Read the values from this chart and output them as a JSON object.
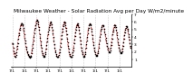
{
  "title": "Milwaukee Weather - Solar Radiation Avg per Day W/m2/minute",
  "line_color": "#dd0000",
  "marker_color": "#000000",
  "background_color": "#ffffff",
  "grid_color": "#999999",
  "ylim": [
    0,
    7
  ],
  "yticks": [
    1,
    2,
    3,
    4,
    5,
    6,
    7
  ],
  "title_fontsize": 4.2,
  "tick_fontsize": 3.2,
  "values": [
    3.2,
    3.0,
    2.5,
    2.1,
    1.8,
    1.5,
    1.3,
    1.4,
    1.6,
    2.0,
    2.4,
    2.8,
    3.2,
    3.7,
    4.2,
    4.5,
    4.9,
    5.2,
    5.5,
    5.7,
    5.8,
    5.8,
    5.7,
    5.5,
    5.2,
    4.8,
    4.3,
    3.9,
    3.5,
    3.1,
    2.7,
    2.4,
    2.1,
    1.9,
    1.7,
    1.6,
    1.5,
    1.4,
    1.3,
    1.2,
    1.3,
    1.5,
    1.8,
    2.2,
    2.6,
    3.0,
    3.5,
    4.0,
    4.5,
    4.9,
    5.2,
    5.5,
    5.8,
    6.1,
    6.3,
    6.2,
    6.0,
    5.7,
    5.3,
    4.9,
    4.4,
    3.9,
    3.4,
    2.9,
    2.5,
    2.1,
    1.8,
    1.6,
    1.5,
    1.4,
    1.4,
    1.5,
    1.7,
    2.0,
    2.4,
    2.9,
    3.4,
    3.9,
    4.3,
    4.7,
    5.0,
    5.3,
    5.6,
    5.8,
    6.0,
    5.9,
    5.7,
    5.3,
    4.9,
    4.5,
    4.0,
    3.5,
    3.0,
    2.6,
    2.2,
    1.9,
    1.7,
    1.5,
    1.4,
    1.3,
    1.3,
    1.4,
    1.6,
    1.9,
    2.3,
    2.7,
    3.2,
    3.7,
    4.2,
    4.7,
    5.1,
    5.4,
    5.7,
    5.9,
    6.0,
    5.9,
    5.6,
    5.2,
    4.8,
    4.3,
    3.8,
    3.3,
    2.8,
    2.4,
    2.0,
    1.7,
    1.5,
    1.4,
    1.3,
    1.3,
    1.4,
    1.6,
    1.9,
    2.2,
    2.6,
    3.1,
    3.6,
    4.1,
    4.6,
    5.0,
    5.3,
    5.6,
    5.7,
    5.8,
    5.6,
    5.3,
    4.9,
    4.5,
    4.0,
    3.5,
    3.0,
    2.6,
    2.2,
    1.9,
    1.7,
    1.5,
    1.4,
    1.4,
    1.5,
    1.7,
    2.0,
    2.5,
    3.0,
    3.5,
    4.0,
    4.5,
    4.9,
    5.2,
    5.5,
    5.7,
    5.8,
    5.7,
    5.5,
    5.1,
    4.7,
    4.2,
    3.8,
    3.3,
    2.9,
    2.5,
    2.2,
    1.9,
    1.7,
    1.6,
    1.5,
    1.5,
    1.6,
    1.8,
    2.1,
    2.5,
    3.0,
    3.5,
    4.0,
    4.4,
    4.8,
    5.1,
    5.3,
    5.5,
    5.6,
    5.6,
    5.4,
    5.1,
    4.7,
    4.3,
    3.9,
    3.5,
    3.1,
    2.8,
    2.5,
    2.3,
    2.1,
    2.0,
    1.9,
    2.0,
    2.2,
    2.5,
    2.9,
    3.3,
    3.8,
    4.3,
    4.7,
    5.0,
    5.3,
    5.5,
    5.6,
    5.5,
    5.3,
    5.0,
    4.6,
    4.2,
    3.7,
    3.3,
    2.9,
    2.6,
    2.3,
    2.1,
    1.9,
    1.8,
    1.8,
    1.9,
    2.1,
    2.4,
    2.8,
    3.3,
    3.8,
    4.2,
    4.6,
    5.0,
    5.2,
    5.4,
    5.4,
    5.3,
    5.1,
    4.8,
    4.4,
    4.0,
    3.6,
    3.2,
    2.8,
    2.5
  ],
  "xtick_interval": 26,
  "xlabels": [
    "7/1",
    "1/1",
    "7/1",
    "1/1",
    "7/1",
    "1/1",
    "7/1",
    "1/1",
    "7/1",
    "1/1",
    "7/1",
    "1/1"
  ]
}
